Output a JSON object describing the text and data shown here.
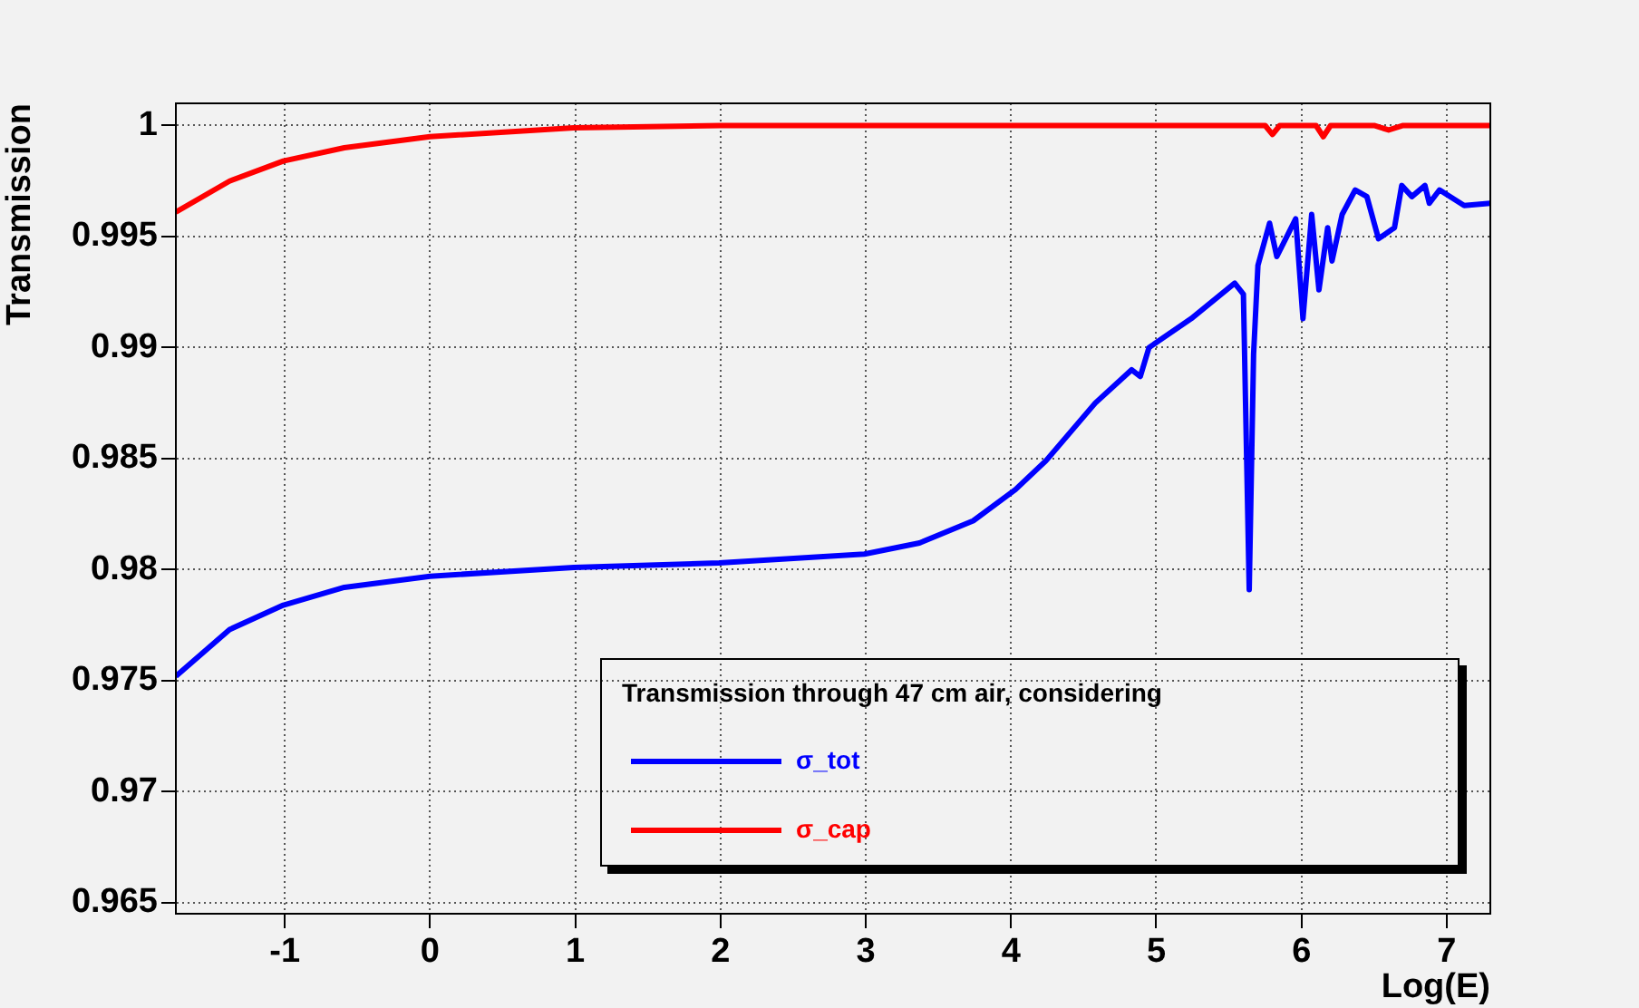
{
  "chart_data": {
    "type": "line",
    "xlabel": "Log(E)",
    "ylabel": "Transmission",
    "legend_title": "Transmission through 47 cm air, considering",
    "xlim": [
      -1.75,
      7.3
    ],
    "xticks": [
      -1,
      0,
      1,
      2,
      3,
      4,
      5,
      6,
      7
    ],
    "ylim": [
      0.9645,
      1.001
    ],
    "yticks": [
      0.965,
      0.97,
      0.975,
      0.98,
      0.985,
      0.99,
      0.995,
      1
    ],
    "grid": true,
    "legend": "bottom right",
    "marker": "none",
    "line_style": "solid",
    "series": [
      {
        "name": "σ_tot",
        "color": "#0000ff",
        "x": [
          -1.75,
          -1.38,
          -1.01,
          -0.59,
          0,
          0.99,
          1.99,
          2.99,
          3.37,
          3.74,
          4.03,
          4.24,
          4.58,
          4.83,
          4.89,
          4.95,
          5.24,
          5.54,
          5.6,
          5.64,
          5.67,
          5.7,
          5.78,
          5.83,
          5.96,
          6.01,
          6.07,
          6.12,
          6.18,
          6.21,
          6.28,
          6.37,
          6.45,
          6.53,
          6.64,
          6.69,
          6.76,
          6.85,
          6.88,
          6.95,
          7.12,
          7.3
        ],
        "values": [
          0.9752,
          0.9773,
          0.9784,
          0.9792,
          0.9797,
          0.9801,
          0.9803,
          0.9807,
          0.9812,
          0.9822,
          0.9836,
          0.9849,
          0.9875,
          0.989,
          0.9887,
          0.99,
          0.9913,
          0.9929,
          0.9924,
          0.9791,
          0.9897,
          0.9937,
          0.9956,
          0.9941,
          0.9958,
          0.9913,
          0.996,
          0.9926,
          0.9954,
          0.9939,
          0.996,
          0.9971,
          0.9968,
          0.9949,
          0.9954,
          0.9973,
          0.9968,
          0.9973,
          0.9965,
          0.9971,
          0.9964,
          0.9965
        ]
      },
      {
        "name": "σ_cap",
        "color": "#ff0000",
        "x": [
          -1.75,
          -1.38,
          -1.01,
          -0.59,
          0,
          0.99,
          2,
          5.75,
          5.8,
          5.85,
          6.1,
          6.15,
          6.2,
          6.5,
          6.6,
          6.7,
          7.3
        ],
        "values": [
          0.9961,
          0.9975,
          0.9984,
          0.999,
          0.9995,
          0.9999,
          1,
          1,
          0.9996,
          1,
          1,
          0.9995,
          1,
          1,
          0.9998,
          1,
          1
        ]
      }
    ]
  }
}
